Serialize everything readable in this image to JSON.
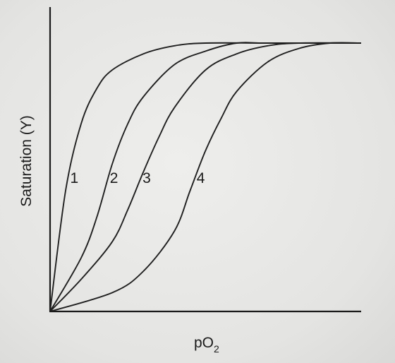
{
  "chart_data": {
    "type": "line",
    "title": "",
    "xlabel": {
      "main": "pO",
      "subscript": "2"
    },
    "ylabel": "Saturation (Y)",
    "x_ticks": [],
    "y_ticks": [],
    "xlim": [
      0,
      10
    ],
    "ylim": [
      0,
      1
    ],
    "grid": false,
    "series": [
      {
        "name": "1",
        "x": [
          0,
          0.5,
          1,
          1.5,
          2,
          3,
          4,
          5,
          7,
          10
        ],
        "values": [
          0,
          0.45,
          0.7,
          0.83,
          0.9,
          0.96,
          0.99,
          1,
          1,
          1
        ]
      },
      {
        "name": "2",
        "x": [
          0,
          1,
          1.5,
          2,
          2.5,
          3,
          4,
          5,
          6,
          7,
          10
        ],
        "values": [
          0,
          0.2,
          0.35,
          0.55,
          0.7,
          0.8,
          0.92,
          0.97,
          1,
          1,
          1
        ]
      },
      {
        "name": "3",
        "x": [
          0,
          1,
          2,
          2.5,
          3,
          3.5,
          4,
          5,
          6,
          7,
          8,
          10
        ],
        "values": [
          0,
          0.12,
          0.26,
          0.38,
          0.52,
          0.65,
          0.76,
          0.9,
          0.96,
          0.99,
          1,
          1
        ]
      },
      {
        "name": "4",
        "x": [
          0,
          2,
          3,
          4,
          4.5,
          5,
          5.5,
          6,
          7,
          8,
          9,
          10
        ],
        "values": [
          0,
          0.07,
          0.15,
          0.3,
          0.45,
          0.6,
          0.72,
          0.82,
          0.93,
          0.98,
          1,
          1
        ]
      }
    ]
  }
}
